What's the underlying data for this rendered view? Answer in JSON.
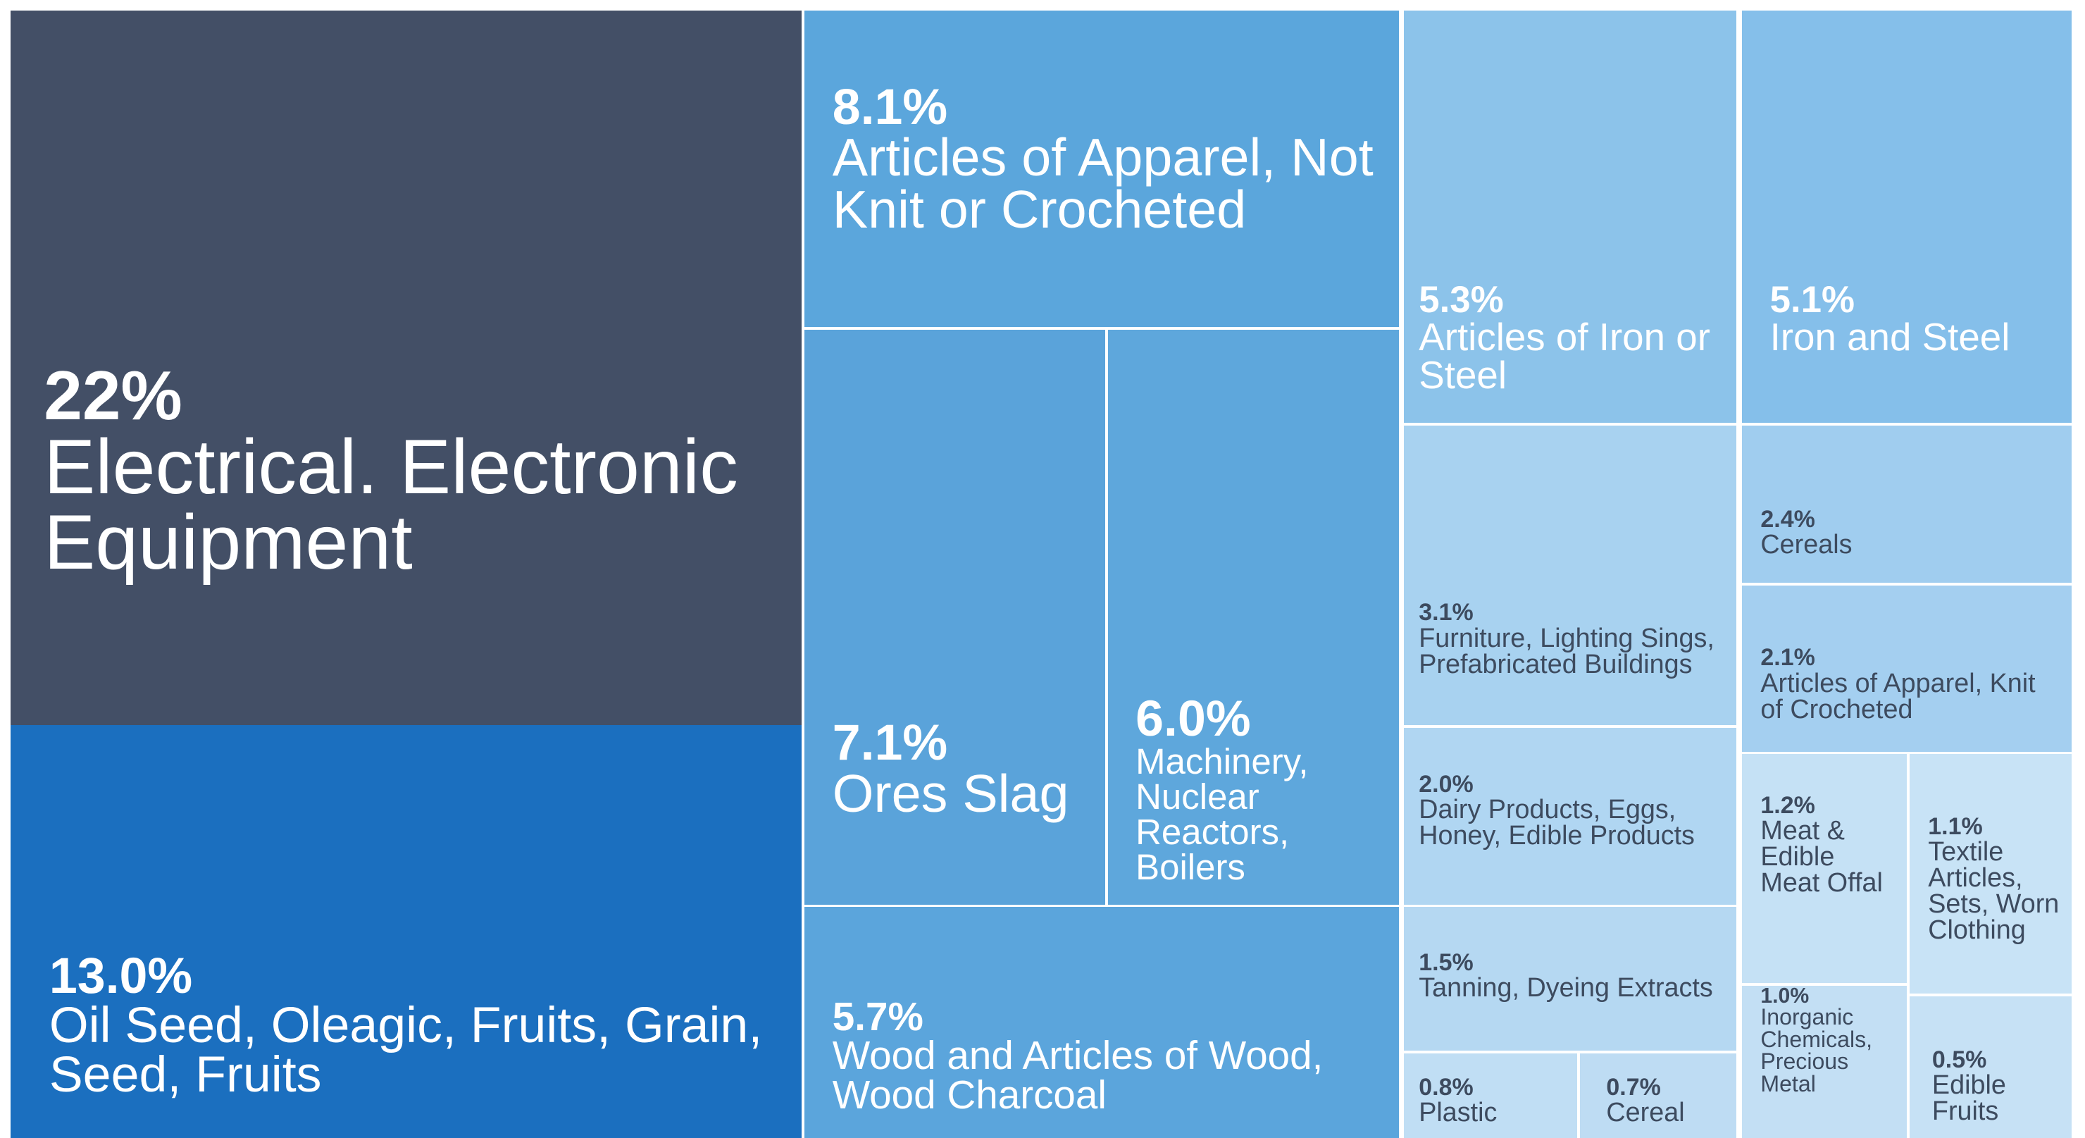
{
  "chart_data": {
    "type": "treemap",
    "labels": [
      "Electrical. Electronic Equipment",
      "Oil Seed, Oleagic, Fruits, Grain, Seed, Fruits",
      "Articles of Apparel, Not Knit or Crocheted",
      "Ores Slag",
      "Machinery, Nuclear Reactors, Boilers",
      "Wood and Articles of Wood, Wood Charcoal",
      "Articles of Iron or Steel",
      "Iron and Steel",
      "Furniture, Lighting Sings, Prefabricated Buildings",
      "Cereals",
      "Articles of Apparel, Knit of Crocheted",
      "Dairy Products, Eggs, Honey, Edible Products",
      "Tanning, Dyeing Extracts",
      "Plastic",
      "Cereal",
      "Meat & Edible Meat Offal",
      "Textile Articles, Sets, Worn Clothing",
      "Inorganic Chemicals, Precious Metal",
      "Edible Fruits"
    ],
    "values": [
      22,
      13.0,
      8.1,
      7.1,
      6.0,
      5.7,
      5.3,
      5.1,
      3.1,
      2.4,
      2.1,
      2.0,
      1.5,
      0.8,
      0.7,
      1.2,
      1.1,
      1.0,
      0.5
    ],
    "value_labels": [
      "22%",
      "13.0%",
      "8.1%",
      "7.1%",
      "6.0%",
      "5.7%",
      "5.3%",
      "5.1%",
      "3.1%",
      "2.4%",
      "2.1%",
      "2.0%",
      "1.5%",
      "0.8%",
      "0.7%",
      "1.2%",
      "1.1%",
      "1.0%",
      "0.5%"
    ],
    "colors": [
      "#434f66",
      "#1b6fbf",
      "#5ba6dc",
      "#5aa3da",
      "#5ea7dc",
      "#5ba5dc",
      "#8cc3ea",
      "#85bfea",
      "#a8d2f0",
      "#a0cdef",
      "#a4cff0",
      "#b0d6f2",
      "#b5d8f2",
      "#c0def4",
      "#bedcf3",
      "#c5e1f5",
      "#c8e3f6",
      "#c3dff4",
      "#c6e1f5"
    ]
  }
}
